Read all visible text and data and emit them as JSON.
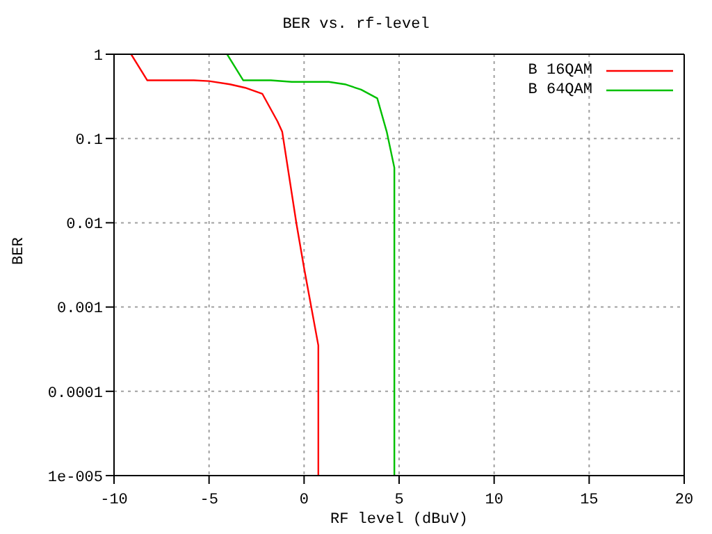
{
  "chart_data": {
    "type": "line",
    "title": "BER vs. rf-level",
    "xlabel": "RF level (dBuV)",
    "ylabel": "BER",
    "log": "y",
    "grid": true,
    "legend": "top right",
    "marker": "none",
    "line_style": "solid",
    "xlim": [
      -10,
      20
    ],
    "xticks": [
      -10,
      -5,
      0,
      5,
      10,
      15,
      20
    ],
    "ylim": [
      1e-05,
      1
    ],
    "yticks": [
      {
        "value": 1e-05,
        "label": "1e-005"
      },
      0.0001,
      0.001,
      0.01,
      0.1,
      1
    ],
    "series": [
      {
        "name": "B 16QAM",
        "color": "#ff0000",
        "x": [
          -9.1,
          -8.25,
          -5.8,
          -5.0,
          -3.9,
          -3.1,
          -2.2,
          -1.4,
          -1.15,
          -0.4,
          0,
          0.75,
          0.75
        ],
        "values": [
          1,
          0.49,
          0.49,
          0.48,
          0.44,
          0.4,
          0.34,
          0.16,
          0.12,
          0.0097,
          0.0029,
          0.00035,
          1e-05
        ]
      },
      {
        "name": "B 64QAM",
        "color": "#00c000",
        "x": [
          -4.05,
          -3.2,
          -1.75,
          -0.65,
          1.3,
          2.15,
          3.0,
          3.85,
          4.35,
          4.75,
          4.75
        ],
        "values": [
          1,
          0.49,
          0.49,
          0.47,
          0.47,
          0.44,
          0.38,
          0.3,
          0.12,
          0.045,
          1e-05
        ]
      }
    ]
  }
}
